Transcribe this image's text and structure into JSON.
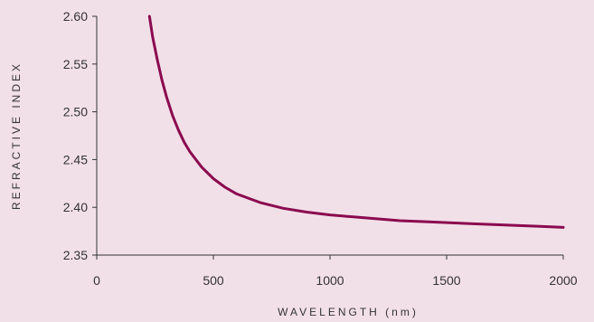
{
  "chart_data": {
    "type": "line",
    "xlabel": "WAVELENGTH (nm)",
    "ylabel": "REFRACTIVE INDEX",
    "xlim": [
      0,
      2000
    ],
    "ylim": [
      2.35,
      2.6
    ],
    "xticks": [
      0,
      500,
      1000,
      1500,
      2000
    ],
    "xtick_labels": [
      "0",
      "500",
      "1000",
      "1500",
      "2000"
    ],
    "yticks": [
      2.35,
      2.4,
      2.45,
      2.5,
      2.55,
      2.6
    ],
    "ytick_labels": [
      "2.35",
      "2.40",
      "2.45",
      "2.50",
      "2.55",
      "2.60"
    ],
    "grid": false,
    "series": [
      {
        "color": "#8b0a4f",
        "x": [
          226,
          240,
          260,
          280,
          300,
          325,
          350,
          375,
          400,
          450,
          500,
          550,
          600,
          700,
          800,
          900,
          1000,
          1100,
          1200,
          1300,
          1400,
          1500,
          1600,
          1700,
          1800,
          1900,
          2000
        ],
        "y": [
          2.6,
          2.578,
          2.554,
          2.533,
          2.515,
          2.496,
          2.481,
          2.468,
          2.458,
          2.442,
          2.43,
          2.421,
          2.414,
          2.405,
          2.399,
          2.395,
          2.392,
          2.39,
          2.388,
          2.386,
          2.385,
          2.384,
          2.383,
          2.382,
          2.381,
          2.38,
          2.379
        ]
      }
    ]
  },
  "colors": {
    "background": "#f2e0e8",
    "axis": "#333333",
    "line": "#8b0a4f"
  }
}
